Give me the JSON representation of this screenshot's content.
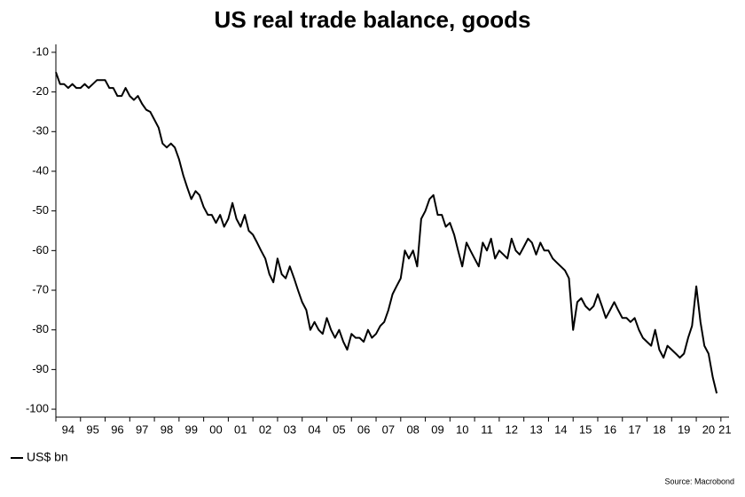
{
  "chart_data": {
    "type": "line",
    "title": "US real trade balance, goods",
    "source": "Source: Macrobond",
    "x": [
      1994,
      1994.17,
      1994.33,
      1994.5,
      1994.67,
      1994.83,
      1995,
      1995.17,
      1995.33,
      1995.5,
      1995.67,
      1995.83,
      1996,
      1996.17,
      1996.33,
      1996.5,
      1996.67,
      1996.83,
      1997,
      1997.17,
      1997.33,
      1997.5,
      1997.67,
      1997.83,
      1998,
      1998.17,
      1998.33,
      1998.5,
      1998.67,
      1998.83,
      1999,
      1999.17,
      1999.33,
      1999.5,
      1999.67,
      1999.83,
      2000,
      2000.17,
      2000.33,
      2000.5,
      2000.67,
      2000.83,
      2001,
      2001.17,
      2001.33,
      2001.5,
      2001.67,
      2001.83,
      2002,
      2002.17,
      2002.33,
      2002.5,
      2002.67,
      2002.83,
      2003,
      2003.17,
      2003.33,
      2003.5,
      2003.67,
      2003.83,
      2004,
      2004.17,
      2004.33,
      2004.5,
      2004.67,
      2004.83,
      2005,
      2005.17,
      2005.33,
      2005.5,
      2005.67,
      2005.83,
      2006,
      2006.17,
      2006.33,
      2006.5,
      2006.67,
      2006.83,
      2007,
      2007.17,
      2007.33,
      2007.5,
      2007.67,
      2007.83,
      2008,
      2008.17,
      2008.33,
      2008.5,
      2008.67,
      2008.83,
      2009,
      2009.17,
      2009.33,
      2009.5,
      2009.67,
      2009.83,
      2010,
      2010.17,
      2010.33,
      2010.5,
      2010.67,
      2010.83,
      2011,
      2011.17,
      2011.33,
      2011.5,
      2011.67,
      2011.83,
      2012,
      2012.17,
      2012.33,
      2012.5,
      2012.67,
      2012.83,
      2013,
      2013.17,
      2013.33,
      2013.5,
      2013.67,
      2013.83,
      2014,
      2014.17,
      2014.33,
      2014.5,
      2014.67,
      2014.83,
      2015,
      2015.17,
      2015.33,
      2015.5,
      2015.67,
      2015.83,
      2016,
      2016.17,
      2016.33,
      2016.5,
      2016.67,
      2016.83,
      2017,
      2017.17,
      2017.33,
      2017.5,
      2017.67,
      2017.83,
      2018,
      2018.17,
      2018.33,
      2018.5,
      2018.67,
      2018.83,
      2019,
      2019.17,
      2019.33,
      2019.5,
      2019.67,
      2019.83,
      2020,
      2020.17,
      2020.33,
      2020.5,
      2020.67,
      2020.83
    ],
    "series": [
      {
        "name": "US$ bn",
        "color": "#000000",
        "values": [
          -15,
          -18,
          -18,
          -19,
          -18,
          -19,
          -19,
          -18,
          -19,
          -18,
          -17,
          -17,
          -17,
          -19,
          -19,
          -21,
          -21,
          -19,
          -21,
          -22,
          -21,
          -23,
          -24.5,
          -25,
          -27,
          -29,
          -33,
          -34,
          -33,
          -34,
          -37,
          -41,
          -44,
          -47,
          -45,
          -46,
          -49,
          -51,
          -51,
          -53,
          -51,
          -54,
          -52,
          -48,
          -52,
          -54,
          -51,
          -55,
          -56,
          -58,
          -60,
          -62,
          -66,
          -68,
          -62,
          -66,
          -67,
          -64,
          -67,
          -70,
          -73,
          -75,
          -80,
          -78,
          -80,
          -81,
          -77,
          -80,
          -82,
          -80,
          -83,
          -85,
          -81,
          -82,
          -82,
          -83,
          -80,
          -82,
          -81,
          -79,
          -78,
          -75,
          -71,
          -69,
          -67,
          -60,
          -62,
          -60,
          -64,
          -52,
          -50,
          -47,
          -46,
          -51,
          -51,
          -54,
          -53,
          -56,
          -60,
          -64,
          -58,
          -60,
          -62,
          -64,
          -58,
          -60,
          -57,
          -62,
          -60,
          -61,
          -62,
          -57,
          -60,
          -61,
          -59,
          -57,
          -58,
          -61,
          -58,
          -60,
          -60,
          -62,
          -63,
          -64,
          -65,
          -67,
          -80,
          -73,
          -72,
          -74,
          -75,
          -74,
          -71,
          -74,
          -77,
          -75,
          -73,
          -75,
          -77,
          -77,
          -78,
          -77,
          -80,
          -82,
          -83,
          -84,
          -80,
          -85,
          -87,
          -84,
          -85,
          -86,
          -87,
          -86,
          -82,
          -79,
          -69,
          -78,
          -84,
          -86,
          -92,
          -96
        ]
      }
    ],
    "xlim": [
      1994,
      2021.33
    ],
    "xticks": [
      {
        "value": 1994,
        "label": "94"
      },
      {
        "value": 1995,
        "label": "95"
      },
      {
        "value": 1996,
        "label": "96"
      },
      {
        "value": 1997,
        "label": "97"
      },
      {
        "value": 1998,
        "label": "98"
      },
      {
        "value": 1999,
        "label": "99"
      },
      {
        "value": 2000,
        "label": "00"
      },
      {
        "value": 2001,
        "label": "01"
      },
      {
        "value": 2002,
        "label": "02"
      },
      {
        "value": 2003,
        "label": "03"
      },
      {
        "value": 2004,
        "label": "04"
      },
      {
        "value": 2005,
        "label": "05"
      },
      {
        "value": 2006,
        "label": "06"
      },
      {
        "value": 2007,
        "label": "07"
      },
      {
        "value": 2008,
        "label": "08"
      },
      {
        "value": 2009,
        "label": "09"
      },
      {
        "value": 2010,
        "label": "10"
      },
      {
        "value": 2011,
        "label": "11"
      },
      {
        "value": 2012,
        "label": "12"
      },
      {
        "value": 2013,
        "label": "13"
      },
      {
        "value": 2014,
        "label": "14"
      },
      {
        "value": 2015,
        "label": "15"
      },
      {
        "value": 2016,
        "label": "16"
      },
      {
        "value": 2017,
        "label": "17"
      },
      {
        "value": 2018,
        "label": "18"
      },
      {
        "value": 2019,
        "label": "19"
      },
      {
        "value": 2020,
        "label": "20"
      },
      {
        "value": 2021,
        "label": "21"
      }
    ],
    "ylim": [
      -102,
      -8
    ],
    "yticks": [
      -10,
      -20,
      -30,
      -40,
      -50,
      -60,
      -70,
      -80,
      -90,
      -100
    ],
    "grid": false
  }
}
